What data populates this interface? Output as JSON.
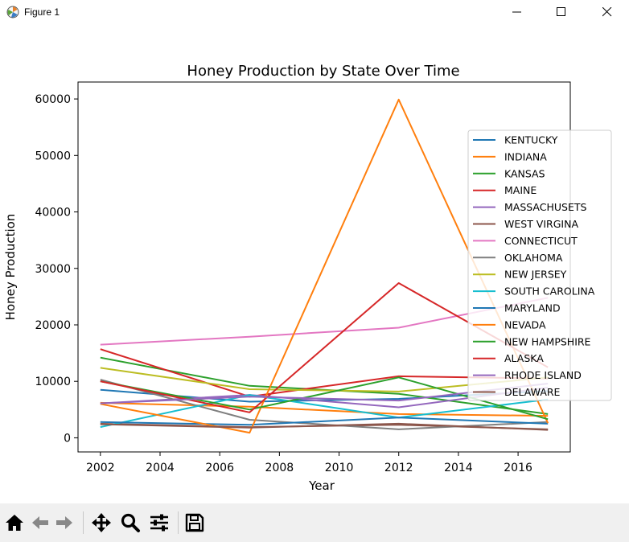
{
  "window": {
    "title": "Figure 1",
    "icons": [
      "matplotlib-icon",
      "minimize-icon",
      "maximize-icon",
      "close-icon"
    ]
  },
  "toolbar": {
    "buttons": [
      "home-icon",
      "back-icon",
      "forward-icon",
      "pan-icon",
      "zoom-icon",
      "configure-subplots-icon",
      "save-icon"
    ]
  },
  "chart_data": {
    "type": "line",
    "title": "Honey Production by State Over Time",
    "xlabel": "Year",
    "ylabel": "Honey Production",
    "x": [
      2002,
      2007,
      2012,
      2017
    ],
    "xlim": [
      2001.25,
      2017.75
    ],
    "ylim": [
      -2500,
      63000
    ],
    "xticks": [
      2002,
      2004,
      2006,
      2008,
      2010,
      2012,
      2014,
      2016
    ],
    "yticks": [
      0,
      10000,
      20000,
      30000,
      40000,
      50000,
      60000
    ],
    "grid": false,
    "legend_position": "center-right",
    "series": [
      {
        "name": "KENTUCKY",
        "color": "#1f77b4",
        "values": [
          8500,
          6400,
          6900,
          8300
        ]
      },
      {
        "name": "INDIANA",
        "color": "#ff7f0e",
        "values": [
          6200,
          5500,
          4200,
          3900
        ]
      },
      {
        "name": "KANSAS",
        "color": "#2ca02c",
        "values": [
          14200,
          9200,
          7800,
          4200
        ]
      },
      {
        "name": "MAINE",
        "color": "#d62728",
        "values": [
          15700,
          7300,
          10900,
          10500
        ]
      },
      {
        "name": "MASSACHUSETS",
        "color": "#9467bd",
        "values": [
          6100,
          7600,
          5400,
          8900
        ]
      },
      {
        "name": "WEST VIRGINA",
        "color": "#8c564b",
        "values": [
          2500,
          1900,
          2300,
          1500
        ]
      },
      {
        "name": "CONNECTICUT",
        "color": "#e377c2",
        "values": [
          16500,
          17900,
          19500,
          24800
        ]
      },
      {
        "name": "OKLAHOMA",
        "color": "#7f7f7f",
        "values": [
          10300,
          3200,
          1500,
          2800
        ]
      },
      {
        "name": "NEW JERSEY",
        "color": "#bcbd22",
        "values": [
          12400,
          8600,
          8200,
          10700
        ]
      },
      {
        "name": "SOUTH CAROLINA",
        "color": "#17becf",
        "values": [
          1900,
          7600,
          3600,
          6800
        ]
      },
      {
        "name": "MARYLAND",
        "color": "#1f77b4",
        "values": [
          2800,
          2300,
          3600,
          2500
        ]
      },
      {
        "name": "NEVADA",
        "color": "#ff7f0e",
        "values": [
          6000,
          900,
          59900,
          2600
        ]
      },
      {
        "name": "NEW HAMPSHIRE",
        "color": "#2ca02c",
        "values": [
          10000,
          5000,
          10700,
          3300
        ]
      },
      {
        "name": "ALASKA",
        "color": "#d62728",
        "values": [
          10000,
          4500,
          27400,
          12500
        ]
      },
      {
        "name": "RHODE ISLAND",
        "color": "#9467bd",
        "values": [
          6100,
          7300,
          6600,
          9600
        ]
      },
      {
        "name": "DELAWARE",
        "color": "#8c564b",
        "values": [
          2400,
          1800,
          2500,
          1400
        ]
      }
    ]
  }
}
